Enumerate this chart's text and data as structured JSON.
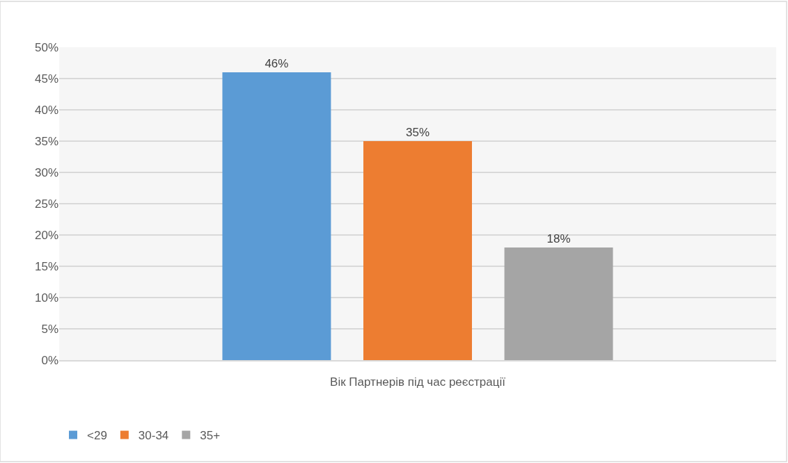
{
  "chart_data": {
    "type": "bar",
    "categories": [
      "Вік Партнерів під час реєстрації"
    ],
    "series": [
      {
        "name": "<29",
        "color": "#5b9bd5",
        "values": [
          46
        ],
        "value_labels": [
          "46%"
        ]
      },
      {
        "name": "30-34",
        "color": "#ed7d31",
        "values": [
          35
        ],
        "value_labels": [
          "35%"
        ]
      },
      {
        "name": "35+",
        "color": "#a5a5a5",
        "values": [
          18
        ],
        "value_labels": [
          "18%"
        ]
      }
    ],
    "ylim": [
      0,
      50
    ],
    "yticks": [
      {
        "value": 0,
        "label": "0%"
      },
      {
        "value": 5,
        "label": "5%"
      },
      {
        "value": 10,
        "label": "10%"
      },
      {
        "value": 15,
        "label": "15%"
      },
      {
        "value": 20,
        "label": "20%"
      },
      {
        "value": 25,
        "label": "25%"
      },
      {
        "value": 30,
        "label": "30%"
      },
      {
        "value": 35,
        "label": "35%"
      },
      {
        "value": 40,
        "label": "40%"
      },
      {
        "value": 45,
        "label": "45%"
      },
      {
        "value": 50,
        "label": "50%"
      }
    ],
    "grid": "y",
    "legend": "bottom left"
  }
}
